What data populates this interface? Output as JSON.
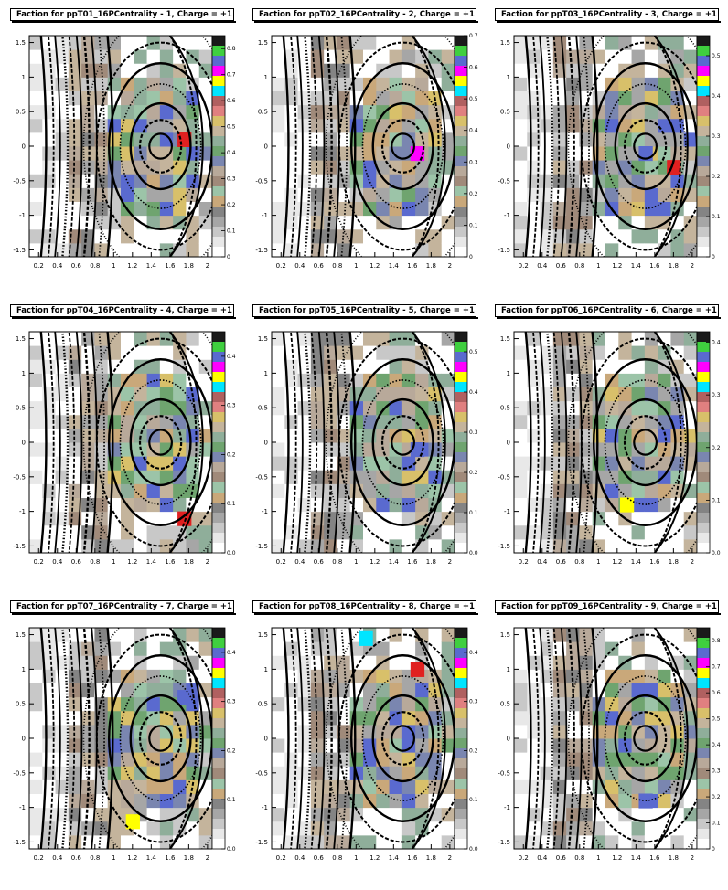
{
  "chart_data": [
    {
      "type": "heatmap",
      "title": "Faction for ppT01_16PCentrality - 1, Charge = +1",
      "xticks": [
        "0.2",
        "0.4",
        "0.6",
        "0.8",
        "1",
        "1.2",
        "1.4",
        "1.6",
        "1.8",
        "2"
      ],
      "yticks": [
        "1.5",
        "1",
        "0.5",
        "0",
        "-0.5",
        "-1",
        "-1.5"
      ],
      "zticks": [
        "0",
        "0.1",
        "0.2",
        "0.3",
        "0.4",
        "0.5",
        "0.6",
        "0.7",
        "0.8"
      ],
      "xlim": [
        0.1,
        2.05
      ],
      "ylim": [
        -1.6,
        1.6
      ],
      "zmax": 0.85,
      "hotspots": [
        [
          1.75,
          0.1,
          0.85
        ]
      ]
    },
    {
      "type": "heatmap",
      "title": "Faction for ppT02_16PCentrality - 2, Charge = +1",
      "xticks": [
        "0.2",
        "0.4",
        "0.6",
        "0.8",
        "1",
        "1.2",
        "1.4",
        "1.6",
        "1.8",
        "2"
      ],
      "yticks": [
        "1.5",
        "1",
        "0.5",
        "0",
        "-0.5",
        "-1",
        "-1.5"
      ],
      "zticks": [
        "0",
        "0.1",
        "0.2",
        "0.3",
        "0.4",
        "0.5",
        "0.6",
        "0.7"
      ],
      "xlim": [
        0.1,
        2.05
      ],
      "ylim": [
        -1.6,
        1.6
      ],
      "zmax": 0.7,
      "hotspots": [
        [
          1.65,
          -0.1,
          0.68
        ]
      ]
    },
    {
      "type": "heatmap",
      "title": "Faction for ppT03_16PCentrality - 3, Charge = +1",
      "xticks": [
        "0.2",
        "0.4",
        "0.6",
        "0.8",
        "1",
        "1.2",
        "1.4",
        "1.6",
        "1.8",
        "2"
      ],
      "yticks": [
        "1.5",
        "1",
        "0.5",
        "0",
        "-0.5",
        "-1",
        "-1.5"
      ],
      "zticks": [
        "0",
        "0.1",
        "0.2",
        "0.3",
        "0.4",
        "0.5"
      ],
      "xlim": [
        0.1,
        2.05
      ],
      "ylim": [
        -1.6,
        1.6
      ],
      "zmax": 0.55,
      "hotspots": [
        [
          1.8,
          -0.3,
          0.55
        ],
        [
          1.5,
          -0.1,
          0.45
        ]
      ]
    },
    {
      "type": "heatmap",
      "title": "Faction for ppT04_16PCentrality - 4, Charge = +1",
      "xticks": [
        "0.2",
        "0.4",
        "0.6",
        "0.8",
        "1",
        "1.2",
        "1.4",
        "1.6",
        "1.8",
        "2"
      ],
      "yticks": [
        "1.5",
        "1",
        "0.5",
        "0",
        "-0.5",
        "-1",
        "-1.5"
      ],
      "zticks": [
        "0.0",
        "0.1",
        "0.2",
        "0.3",
        "0.4"
      ],
      "xlim": [
        0.1,
        2.05
      ],
      "ylim": [
        -1.6,
        1.6
      ],
      "zmax": 0.45,
      "hotspots": [
        [
          1.75,
          -1.1,
          0.45
        ]
      ]
    },
    {
      "type": "heatmap",
      "title": "Faction for ppT05_16PCentrality - 5, Charge = +1",
      "xticks": [
        "0.2",
        "0.4",
        "0.6",
        "0.8",
        "1",
        "1.2",
        "1.4",
        "1.6",
        "1.8",
        "2"
      ],
      "yticks": [
        "1.5",
        "1",
        "0.5",
        "0",
        "-0.5",
        "-1",
        "-1.5"
      ],
      "zticks": [
        "0.0",
        "0.1",
        "0.2",
        "0.3",
        "0.4",
        "0.5"
      ],
      "xlim": [
        0.1,
        2.05
      ],
      "ylim": [
        -1.6,
        1.6
      ],
      "zmax": 0.55,
      "hotspots": [
        [
          1.65,
          -0.1,
          0.5
        ]
      ]
    },
    {
      "type": "heatmap",
      "title": "Faction for ppT06_16PCentrality - 6, Charge = +1",
      "xticks": [
        "0.2",
        "0.4",
        "0.6",
        "0.8",
        "1",
        "1.2",
        "1.4",
        "1.6",
        "1.8",
        "2"
      ],
      "yticks": [
        "1.5",
        "1",
        "0.5",
        "0",
        "-0.5",
        "-1",
        "-1.5"
      ],
      "zticks": [
        "0.0",
        "0.1",
        "0.2",
        "0.3",
        "0.4"
      ],
      "xlim": [
        0.1,
        2.05
      ],
      "ylim": [
        -1.6,
        1.6
      ],
      "zmax": 0.42,
      "hotspots": [
        [
          1.3,
          -0.9,
          0.42
        ]
      ]
    },
    {
      "type": "heatmap",
      "title": "Faction for ppT07_16PCentrality - 7, Charge = +1",
      "xticks": [
        "0.2",
        "0.4",
        "0.6",
        "0.8",
        "1",
        "1.2",
        "1.4",
        "1.6",
        "1.8",
        "2"
      ],
      "yticks": [
        "1.5",
        "1",
        "0.5",
        "0",
        "-0.5",
        "-1",
        "-1.5"
      ],
      "zticks": [
        "0.0",
        "0.1",
        "0.2",
        "0.3",
        "0.4"
      ],
      "xlim": [
        0.1,
        2.05
      ],
      "ylim": [
        -1.6,
        1.6
      ],
      "zmax": 0.45,
      "hotspots": [
        [
          1.2,
          -1.2,
          0.45
        ],
        [
          1.75,
          0.6,
          0.4
        ]
      ]
    },
    {
      "type": "heatmap",
      "title": "Faction for ppT08_16PCentrality - 8, Charge = +1",
      "xticks": [
        "0.2",
        "0.4",
        "0.6",
        "0.8",
        "1",
        "1.2",
        "1.4",
        "1.6",
        "1.8",
        "2"
      ],
      "yticks": [
        "1.5",
        "1",
        "0.5",
        "0",
        "-0.5",
        "-1",
        "-1.5"
      ],
      "zticks": [
        "0.0",
        "0.1",
        "0.2",
        "0.3",
        "0.4"
      ],
      "xlim": [
        0.1,
        2.05
      ],
      "ylim": [
        -1.6,
        1.6
      ],
      "zmax": 0.45,
      "hotspots": [
        [
          1.65,
          1.0,
          0.45
        ],
        [
          1.1,
          1.45,
          0.4
        ]
      ]
    },
    {
      "type": "heatmap",
      "title": "Faction for ppT09_16PCentrality - 9, Charge = +1",
      "xticks": [
        "0.2",
        "0.4",
        "0.6",
        "0.8",
        "1",
        "1.2",
        "1.4",
        "1.6",
        "1.8",
        "2"
      ],
      "yticks": [
        "1.5",
        "1",
        "0.5",
        "0",
        "-0.5",
        "-1",
        "-1.5"
      ],
      "zticks": [
        "0",
        "0.1",
        "0.2",
        "0.3",
        "0.4",
        "0.5",
        "0.6",
        "0.7",
        "0.8"
      ],
      "xlim": [
        0.1,
        2.05
      ],
      "ylim": [
        -1.6,
        1.6
      ],
      "zmax": 0.85,
      "hotspots": [
        [
          1.5,
          -0.9,
          0.3
        ]
      ]
    }
  ],
  "palette": [
    "#ffffff",
    "#e8e8e8",
    "#c8c8c8",
    "#a6a6a6",
    "#848484",
    "#b8a99a",
    "#a08a7a",
    "#c4b49c",
    "#8fae9a",
    "#9cc4a8",
    "#6fa46f",
    "#3fcf3f",
    "#7a86b0",
    "#5a6acf",
    "#c9a87a",
    "#d8c06a",
    "#b06060",
    "#e02020",
    "#ff00ff",
    "#00e5ff",
    "#ffff00",
    "#1a1a1a"
  ]
}
